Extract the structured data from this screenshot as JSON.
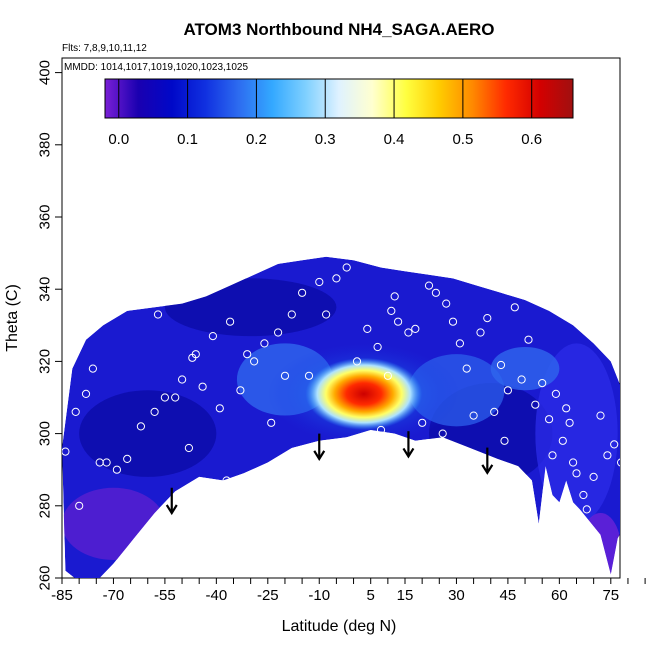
{
  "chart_data": {
    "type": "heatmap",
    "title": "ATOM3 Northbound NH4_SAGA.AERO",
    "subtitle_flights": "Flts: 7,8,9,10,11,12",
    "subtitle_dates": "MMDD: 1014,1017,1019,1020,1023,1025",
    "xlabel": "Latitude (deg N)",
    "ylabel": "Theta (C)",
    "xlim": [
      -85,
      90
    ],
    "ylim": [
      260,
      405
    ],
    "x_ticks": [
      -85,
      -70,
      -55,
      -40,
      -25,
      -10,
      5,
      15,
      30,
      45,
      60,
      75
    ],
    "y_ticks": [
      260,
      280,
      300,
      320,
      340,
      360,
      380,
      400
    ],
    "colorbar": {
      "range": [
        -0.02,
        0.66
      ],
      "ticks": [
        0.0,
        0.1,
        0.2,
        0.3,
        0.4,
        0.5,
        0.6
      ],
      "tick_labels": [
        "0.0",
        "0.1",
        "0.2",
        "0.3",
        "0.4",
        "0.5",
        "0.6"
      ],
      "colors": [
        "#7a1fd6",
        "#1a00b0",
        "#0008c8",
        "#1030e0",
        "#2d6cf0",
        "#33a8ff",
        "#7fd0ff",
        "#dff2ff",
        "#ffffd0",
        "#ffff40",
        "#ffcc00",
        "#ff8800",
        "#ff2a00",
        "#d40000",
        "#a01010"
      ]
    },
    "hotspot": {
      "center_lat": 3,
      "center_theta": 311,
      "peak_value": 0.6,
      "description": "Enhanced NH4 between about -13 and 16 deg N, theta 300-318"
    },
    "profile_markers_lat": [
      -53,
      -10,
      16,
      39
    ],
    "sample_points": [
      [
        -84,
        295
      ],
      [
        -81,
        306
      ],
      [
        -78,
        311
      ],
      [
        -76,
        318
      ],
      [
        -74,
        292
      ],
      [
        -72,
        292
      ],
      [
        -69,
        290
      ],
      [
        -66,
        293
      ],
      [
        -62,
        302
      ],
      [
        -58,
        306
      ],
      [
        -55,
        310
      ],
      [
        -52,
        310
      ],
      [
        -50,
        315
      ],
      [
        -47,
        321
      ],
      [
        -46,
        322
      ],
      [
        -44,
        313
      ],
      [
        -41,
        327
      ],
      [
        -39,
        307
      ],
      [
        -36,
        331
      ],
      [
        -33,
        312
      ],
      [
        -31,
        322
      ],
      [
        -29,
        320
      ],
      [
        -26,
        325
      ],
      [
        -22,
        328
      ],
      [
        -20,
        316
      ],
      [
        -18,
        333
      ],
      [
        -15,
        339
      ],
      [
        -13,
        316
      ],
      [
        -10,
        342
      ],
      [
        -8,
        333
      ],
      [
        -5,
        343
      ],
      [
        -2,
        346
      ],
      [
        1,
        320
      ],
      [
        4,
        329
      ],
      [
        7,
        324
      ],
      [
        8,
        301
      ],
      [
        10,
        316
      ],
      [
        11,
        334
      ],
      [
        12,
        338
      ],
      [
        13,
        331
      ],
      [
        16,
        328
      ],
      [
        18,
        329
      ],
      [
        20,
        303
      ],
      [
        22,
        341
      ],
      [
        24,
        339
      ],
      [
        27,
        336
      ],
      [
        29,
        331
      ],
      [
        31,
        325
      ],
      [
        33,
        318
      ],
      [
        35,
        305
      ],
      [
        37,
        328
      ],
      [
        39,
        332
      ],
      [
        41,
        306
      ],
      [
        43,
        319
      ],
      [
        45,
        312
      ],
      [
        47,
        335
      ],
      [
        49,
        315
      ],
      [
        51,
        326
      ],
      [
        53,
        308
      ],
      [
        55,
        314
      ],
      [
        57,
        304
      ],
      [
        59,
        311
      ],
      [
        61,
        298
      ],
      [
        63,
        303
      ],
      [
        64,
        292
      ],
      [
        65,
        289
      ],
      [
        67,
        283
      ],
      [
        68,
        279
      ],
      [
        70,
        288
      ],
      [
        72,
        305
      ],
      [
        74,
        294
      ],
      [
        76,
        297
      ],
      [
        78,
        292
      ],
      [
        80,
        289
      ],
      [
        -57,
        333
      ],
      [
        -24,
        303
      ],
      [
        -6,
        296
      ],
      [
        2,
        294
      ],
      [
        26,
        300
      ],
      [
        44,
        298
      ],
      [
        -80,
        280
      ],
      [
        -48,
        296
      ],
      [
        -37,
        287
      ],
      [
        6,
        299
      ],
      [
        58,
        294
      ],
      [
        62,
        307
      ]
    ],
    "domain_outline": {
      "top": [
        [
          -85,
          296
        ],
        [
          -82,
          318
        ],
        [
          -78,
          326
        ],
        [
          -73,
          330
        ],
        [
          -66,
          334
        ],
        [
          -58,
          335
        ],
        [
          -50,
          336
        ],
        [
          -43,
          338
        ],
        [
          -36,
          341
        ],
        [
          -29,
          344
        ],
        [
          -22,
          347
        ],
        [
          -15,
          348
        ],
        [
          -8,
          349
        ],
        [
          0,
          348
        ],
        [
          8,
          346
        ],
        [
          15,
          345
        ],
        [
          22,
          344
        ],
        [
          29,
          343
        ],
        [
          36,
          341
        ],
        [
          43,
          339
        ],
        [
          50,
          337
        ],
        [
          57,
          334
        ],
        [
          64,
          330
        ],
        [
          70,
          325
        ],
        [
          75,
          320
        ],
        [
          80,
          308
        ],
        [
          83,
          290
        ]
      ],
      "bottom": [
        [
          83,
          283
        ],
        [
          80,
          276
        ],
        [
          77,
          271
        ],
        [
          75,
          261
        ],
        [
          72,
          272
        ],
        [
          66,
          279
        ],
        [
          64,
          281
        ],
        [
          62,
          287
        ],
        [
          60,
          281
        ],
        [
          58,
          283
        ],
        [
          56,
          291
        ],
        [
          54,
          275
        ],
        [
          52,
          287
        ],
        [
          48,
          291
        ],
        [
          42,
          293
        ],
        [
          34,
          296
        ],
        [
          26,
          299
        ],
        [
          18,
          298
        ],
        [
          12,
          300
        ],
        [
          5,
          301
        ],
        [
          -2,
          299
        ],
        [
          -10,
          298
        ],
        [
          -18,
          296
        ],
        [
          -25,
          292
        ],
        [
          -32,
          289
        ],
        [
          -38,
          287
        ],
        [
          -45,
          288
        ],
        [
          -52,
          284
        ],
        [
          -58,
          278
        ],
        [
          -64,
          271
        ],
        [
          -70,
          264
        ],
        [
          -74,
          260
        ],
        [
          -80,
          259
        ],
        [
          -84,
          262
        ]
      ]
    },
    "grid": false,
    "legend_placement": "top (inset colorbar)"
  }
}
